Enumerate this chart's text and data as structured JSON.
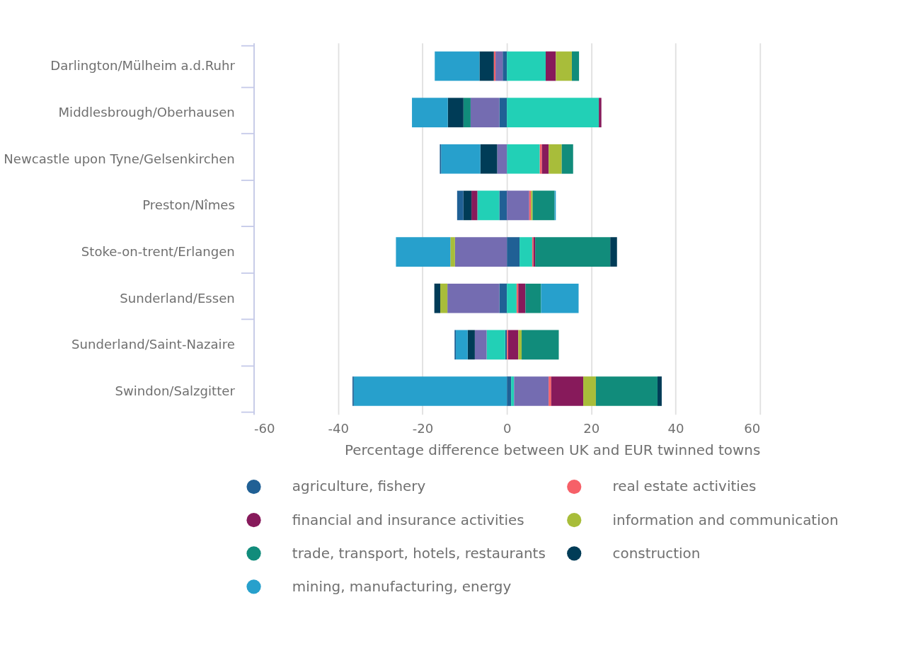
{
  "chart_data": {
    "type": "bar",
    "orientation": "horizontal",
    "stacked": true,
    "xlabel": "Percentage difference between UK and EUR twinned towns",
    "categories": [
      "Darlington/Mülheim a.d.Ruhr",
      "Middlesbrough/Oberhausen",
      "Newcastle upon Tyne/Gelsenkirchen",
      "Preston/Nîmes",
      "Stoke-on-trent/Erlangen",
      "Sunderland/Essen",
      "Sunderland/Saint-Nazaire",
      "Swindon/Salzgitter"
    ],
    "xlim": [
      -60,
      60
    ],
    "xticks": [
      -60,
      -40,
      -20,
      0,
      20,
      40,
      60
    ],
    "grid": "x",
    "legend": "bottom",
    "series": [
      {
        "name": "agriculture, fishery",
        "color": "#206095",
        "values": [
          -1.0,
          -1.8,
          null,
          -1.8,
          3.0,
          -1.8,
          -0.4,
          1.0
        ]
      },
      {
        "color": "#22d0b6",
        "values": [
          9.2,
          21.8,
          7.8,
          -5.2,
          3.0,
          2.3,
          -4.4,
          0.7
        ]
      },
      {
        "color": "#746cb1",
        "values": [
          -1.7,
          -6.8,
          -2.3,
          5.3,
          -12.3,
          -12.3,
          -2.8,
          8.2
        ]
      },
      {
        "name": "real estate activities",
        "color": "#f66068",
        "values": [
          -0.4,
          null,
          0.5,
          0.4,
          0.3,
          0.4,
          0.3,
          0.6
        ]
      },
      {
        "name": "financial and insurance activities",
        "color": "#871a5b",
        "values": [
          2.4,
          0.6,
          1.6,
          -1.4,
          0.4,
          1.7,
          2.4,
          7.6
        ]
      },
      {
        "name": "information and communication",
        "color": "#a8bd3a",
        "values": [
          3.8,
          null,
          3.1,
          0.4,
          -1.1,
          -1.7,
          0.8,
          3.0
        ]
      },
      {
        "name": "trade, transport, hotels, restaurants",
        "color": "#118c7b",
        "values": [
          1.7,
          -1.7,
          2.7,
          5.2,
          17.8,
          3.7,
          8.8,
          14.6
        ]
      },
      {
        "name": "construction",
        "color": "#003c57",
        "values": [
          -3.4,
          -3.7,
          -4.0,
          -1.9,
          1.6,
          -1.4,
          -1.7,
          1.0
        ]
      },
      {
        "name": "mining, manufacturing, energy",
        "color": "#27a0cc",
        "values": [
          -10.6,
          -8.5,
          -9.3,
          0.3,
          -12.9,
          8.9,
          -2.8,
          -36.3
        ]
      },
      {
        "color": "#206095",
        "values": [
          null,
          null,
          -0.3,
          -1.5,
          null,
          null,
          -0.3,
          -0.3
        ]
      }
    ]
  }
}
